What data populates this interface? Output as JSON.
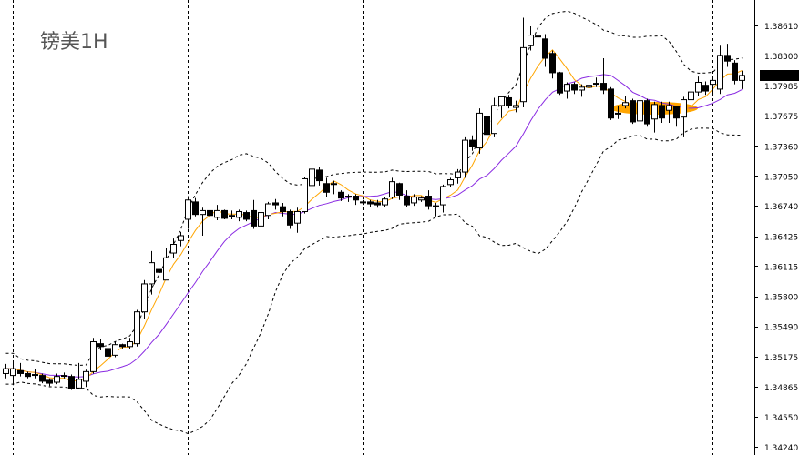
{
  "chart_data": {
    "type": "candlestick",
    "title": "镑美1H",
    "current_price": "1.38092",
    "y_ticks": [
      "1.38610",
      "1.38300",
      "1.37985",
      "1.37675",
      "1.37360",
      "1.37050",
      "1.36740",
      "1.36425",
      "1.36115",
      "1.35800",
      "1.35490",
      "1.35175",
      "1.34865",
      "1.34550",
      "1.34240"
    ],
    "ylim": [
      1.342,
      1.3885
    ],
    "grid": "vertical dashed separators only",
    "colors": {
      "bull": "#ffffff",
      "bear": "#000000",
      "fast_ma": "#ffa500",
      "slow_ma": "#8a2be2",
      "bands": "#000000",
      "price_line": "#708090",
      "highlight": "#ffa500"
    },
    "ohlc": [
      [
        1.35,
        1.351,
        1.3495,
        1.3505
      ],
      [
        1.3498,
        1.3512,
        1.3488,
        1.3505
      ],
      [
        1.3503,
        1.3511,
        1.3497,
        1.35
      ],
      [
        1.35,
        1.3502,
        1.3495,
        1.3497
      ],
      [
        1.3499,
        1.3505,
        1.3495,
        1.3499
      ],
      [
        1.3498,
        1.35,
        1.349,
        1.3492
      ],
      [
        1.3493,
        1.3495,
        1.3487,
        1.349
      ],
      [
        1.3491,
        1.35,
        1.3489,
        1.3497
      ],
      [
        1.3498,
        1.3501,
        1.3495,
        1.3498
      ],
      [
        1.3497,
        1.3499,
        1.3483,
        1.3484
      ],
      [
        1.3485,
        1.3511,
        1.3484,
        1.3494
      ],
      [
        1.3492,
        1.3504,
        1.3486,
        1.3502
      ],
      [
        1.3502,
        1.3537,
        1.35,
        1.3533
      ],
      [
        1.3531,
        1.3536,
        1.3524,
        1.3528
      ],
      [
        1.3526,
        1.3528,
        1.3516,
        1.3518
      ],
      [
        1.3519,
        1.3533,
        1.3517,
        1.353
      ],
      [
        1.353,
        1.3531,
        1.3526,
        1.3528
      ],
      [
        1.3528,
        1.3537,
        1.3525,
        1.3533
      ],
      [
        1.3531,
        1.3566,
        1.3528,
        1.3564
      ],
      [
        1.3564,
        1.3597,
        1.3557,
        1.3593
      ],
      [
        1.3593,
        1.3627,
        1.3582,
        1.3615
      ],
      [
        1.3608,
        1.3613,
        1.3596,
        1.3605
      ],
      [
        1.3597,
        1.363,
        1.3597,
        1.362
      ],
      [
        1.3625,
        1.364,
        1.362,
        1.3634
      ],
      [
        1.3638,
        1.3647,
        1.3632,
        1.3643
      ],
      [
        1.366,
        1.3684,
        1.365,
        1.368
      ],
      [
        1.3678,
        1.3682,
        1.3663,
        1.3665
      ],
      [
        1.3665,
        1.3672,
        1.3643,
        1.3669
      ],
      [
        1.3669,
        1.368,
        1.366,
        1.3664
      ],
      [
        1.3662,
        1.3675,
        1.3659,
        1.3669
      ],
      [
        1.3669,
        1.367,
        1.366,
        1.3661
      ],
      [
        1.3664,
        1.3669,
        1.366,
        1.3664
      ],
      [
        1.3662,
        1.367,
        1.3658,
        1.3668
      ],
      [
        1.3667,
        1.3669,
        1.3658,
        1.366
      ],
      [
        1.3669,
        1.368,
        1.365,
        1.3653
      ],
      [
        1.3653,
        1.367,
        1.365,
        1.3667
      ],
      [
        1.3664,
        1.3678,
        1.366,
        1.3676
      ],
      [
        1.3677,
        1.3681,
        1.367,
        1.3675
      ],
      [
        1.3673,
        1.3677,
        1.3663,
        1.3668
      ],
      [
        1.3668,
        1.367,
        1.365,
        1.3654
      ],
      [
        1.3656,
        1.3672,
        1.3646,
        1.3668
      ],
      [
        1.3668,
        1.3704,
        1.3666,
        1.3702
      ],
      [
        1.3695,
        1.3716,
        1.369,
        1.3712
      ],
      [
        1.3711,
        1.3714,
        1.3695,
        1.37
      ],
      [
        1.3697,
        1.3703,
        1.3683,
        1.3688
      ],
      [
        1.3697,
        1.37,
        1.3686,
        1.3697
      ],
      [
        1.3688,
        1.369,
        1.3679,
        1.3682
      ],
      [
        1.3684,
        1.3686,
        1.3678,
        1.3684
      ],
      [
        1.3684,
        1.3686,
        1.3675,
        1.368
      ],
      [
        1.3678,
        1.368,
        1.3675,
        1.3678
      ],
      [
        1.3678,
        1.368,
        1.3673,
        1.3676
      ],
      [
        1.3677,
        1.368,
        1.3672,
        1.3675
      ],
      [
        1.3675,
        1.3683,
        1.3673,
        1.3681
      ],
      [
        1.3683,
        1.3703,
        1.3681,
        1.3699
      ],
      [
        1.3697,
        1.3698,
        1.368,
        1.3685
      ],
      [
        1.3684,
        1.369,
        1.3673,
        1.3675
      ],
      [
        1.3677,
        1.3686,
        1.3674,
        1.3683
      ],
      [
        1.368,
        1.3684,
        1.3678,
        1.3682
      ],
      [
        1.3684,
        1.369,
        1.367,
        1.3674
      ],
      [
        1.3674,
        1.3677,
        1.3663,
        1.3674
      ],
      [
        1.3675,
        1.3696,
        1.3667,
        1.3694
      ],
      [
        1.3696,
        1.3703,
        1.3693,
        1.3701
      ],
      [
        1.3703,
        1.3712,
        1.3697,
        1.3709
      ],
      [
        1.3709,
        1.3745,
        1.3703,
        1.3742
      ],
      [
        1.3742,
        1.3747,
        1.3731,
        1.3735
      ],
      [
        1.3734,
        1.3775,
        1.3728,
        1.377
      ],
      [
        1.3767,
        1.3777,
        1.3745,
        1.3748
      ],
      [
        1.3749,
        1.3786,
        1.3745,
        1.3778
      ],
      [
        1.3778,
        1.3788,
        1.3765,
        1.3787
      ],
      [
        1.3786,
        1.3789,
        1.3775,
        1.3778
      ],
      [
        1.3776,
        1.3783,
        1.3771,
        1.3778
      ],
      [
        1.3782,
        1.3869,
        1.3776,
        1.3838
      ],
      [
        1.384,
        1.386,
        1.3835,
        1.3851
      ],
      [
        1.385,
        1.3855,
        1.3835,
        1.385
      ],
      [
        1.3847,
        1.3852,
        1.3818,
        1.3827
      ],
      [
        1.3832,
        1.3835,
        1.3806,
        1.3812
      ],
      [
        1.3812,
        1.3813,
        1.3789,
        1.3791
      ],
      [
        1.3793,
        1.3802,
        1.3785,
        1.38
      ],
      [
        1.38,
        1.3802,
        1.379,
        1.3794
      ],
      [
        1.3794,
        1.38,
        1.3787,
        1.3797
      ],
      [
        1.3797,
        1.38,
        1.3788,
        1.3799
      ],
      [
        1.3801,
        1.3807,
        1.3797,
        1.3801
      ],
      [
        1.3801,
        1.3827,
        1.379,
        1.3794
      ],
      [
        1.3795,
        1.3797,
        1.3763,
        1.3765
      ],
      [
        1.377,
        1.3778,
        1.3764,
        1.377
      ],
      [
        1.3778,
        1.3788,
        1.3775,
        1.3781
      ],
      [
        1.3783,
        1.3785,
        1.3759,
        1.3761
      ],
      [
        1.3762,
        1.3785,
        1.3759,
        1.3783
      ],
      [
        1.3783,
        1.3785,
        1.3756,
        1.3759
      ],
      [
        1.3764,
        1.3782,
        1.375,
        1.3779
      ],
      [
        1.3778,
        1.3782,
        1.376,
        1.3765
      ],
      [
        1.3773,
        1.3782,
        1.376,
        1.3778
      ],
      [
        1.3777,
        1.3778,
        1.3756,
        1.3765
      ],
      [
        1.3766,
        1.3787,
        1.3745,
        1.3784
      ],
      [
        1.3784,
        1.3795,
        1.3775,
        1.3792
      ],
      [
        1.3792,
        1.3808,
        1.3788,
        1.3802
      ],
      [
        1.3799,
        1.3803,
        1.3789,
        1.3793
      ],
      [
        1.38,
        1.3807,
        1.379,
        1.3804
      ],
      [
        1.3795,
        1.384,
        1.379,
        1.383
      ],
      [
        1.383,
        1.3842,
        1.3818,
        1.3824
      ],
      [
        1.3822,
        1.3825,
        1.38,
        1.3804
      ],
      [
        1.3804,
        1.3814,
        1.3795,
        1.38092
      ]
    ]
  }
}
